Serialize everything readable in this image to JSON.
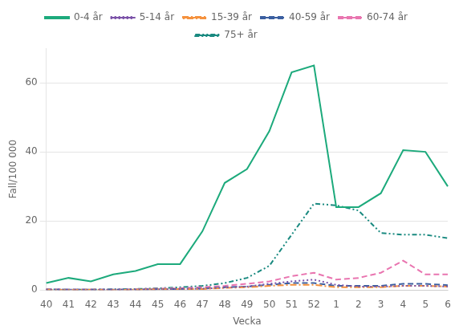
{
  "chart_data": {
    "type": "line",
    "xlabel": "Vecka",
    "ylabel": "Fall/100 000",
    "categories": [
      "40",
      "41",
      "42",
      "43",
      "44",
      "45",
      "46",
      "47",
      "48",
      "49",
      "50",
      "51",
      "52",
      "1",
      "2",
      "3",
      "4",
      "5",
      "6"
    ],
    "series": [
      {
        "name": "0-4 år",
        "color": "#1daa7c",
        "line_style": "solid",
        "marker": "none",
        "values": [
          2.0,
          3.5,
          2.5,
          4.5,
          5.5,
          7.5,
          7.5,
          17.0,
          31.0,
          35.0,
          46.0,
          63.0,
          65.0,
          24.0,
          24.0,
          28.0,
          40.5,
          40.0,
          30.0
        ]
      },
      {
        "name": "5-14 år",
        "color": "#7b52a8",
        "line_style": "dotted",
        "marker": "none",
        "values": [
          0.1,
          0.1,
          0.1,
          0.1,
          0.1,
          0.2,
          0.3,
          0.4,
          0.7,
          1.0,
          1.8,
          2.5,
          3.0,
          1.5,
          1.0,
          1.0,
          1.2,
          1.2,
          1.0
        ]
      },
      {
        "name": "15-39 år",
        "color": "#f5923e",
        "line_style": "dashdot",
        "marker": "none",
        "values": [
          0.1,
          0.0,
          0.1,
          0.0,
          0.1,
          0.2,
          0.3,
          0.3,
          0.6,
          0.8,
          1.2,
          1.5,
          1.5,
          0.8,
          0.8,
          0.8,
          1.2,
          1.2,
          1.0
        ]
      },
      {
        "name": "40-59 år",
        "color": "#3b5fa0",
        "line_style": "dashed",
        "marker": "none",
        "values": [
          0.1,
          0.1,
          0.1,
          0.1,
          0.1,
          0.2,
          0.3,
          0.4,
          0.8,
          1.0,
          1.5,
          2.0,
          2.0,
          1.2,
          1.2,
          1.2,
          1.8,
          1.8,
          1.4
        ]
      },
      {
        "name": "60-74 år",
        "color": "#e975b0",
        "line_style": "dashed",
        "marker": "none",
        "values": [
          0.2,
          0.1,
          0.1,
          0.1,
          0.2,
          0.4,
          0.5,
          0.8,
          1.2,
          1.8,
          2.5,
          4.0,
          5.0,
          3.0,
          3.5,
          5.0,
          8.5,
          4.5,
          4.5
        ]
      },
      {
        "name": "75+ år",
        "color": "#1a8a80",
        "line_style": "dashdotdotted",
        "marker": "none",
        "values": [
          0.2,
          0.1,
          0.1,
          0.2,
          0.3,
          0.5,
          0.8,
          1.2,
          2.0,
          3.5,
          7.0,
          16.0,
          25.0,
          24.5,
          23.0,
          16.5,
          16.0,
          16.0,
          15.0
        ]
      }
    ],
    "ylim": [
      0,
      70
    ],
    "yticks": [
      0,
      20,
      40,
      60
    ],
    "grid": true,
    "legend": "top"
  }
}
